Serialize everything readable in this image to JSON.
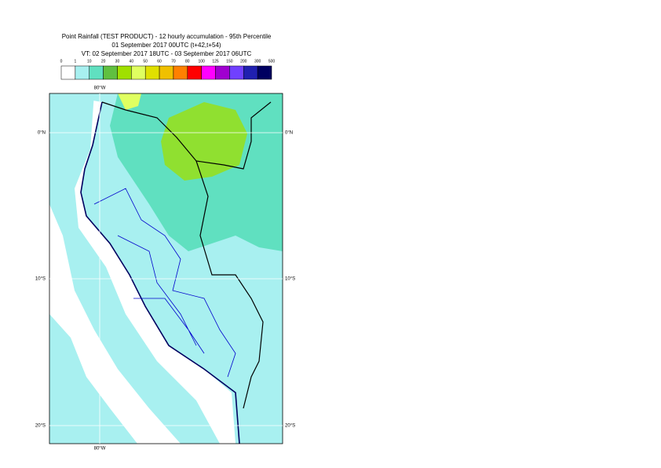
{
  "header": {
    "title": "Point Rainfall (TEST PRODUCT) - 12 hourly accumulation - 95th Percentile",
    "base_time": "01 September 2017 00UTC (t+42,t+54)",
    "valid_time": "VT: 02 September 2017 18UTC - 03 September 2017 06UTC"
  },
  "legend": {
    "labels": [
      0,
      1,
      10,
      20,
      30,
      40,
      50,
      60,
      70,
      80,
      100,
      125,
      150,
      200,
      300,
      500
    ],
    "colors": [
      "#ffffff",
      "#a8f0f0",
      "#60e0c0",
      "#60c040",
      "#a0e000",
      "#e0ff60",
      "#e0e000",
      "#f0c000",
      "#ff8000",
      "#ff0000",
      "#ff00ff",
      "#a000d0",
      "#7040ff",
      "#2020b0",
      "#000060"
    ]
  },
  "map": {
    "lat_labels": [
      "0°N",
      "10°S",
      "20°S"
    ],
    "lon_labels": [
      "80°W"
    ]
  }
}
